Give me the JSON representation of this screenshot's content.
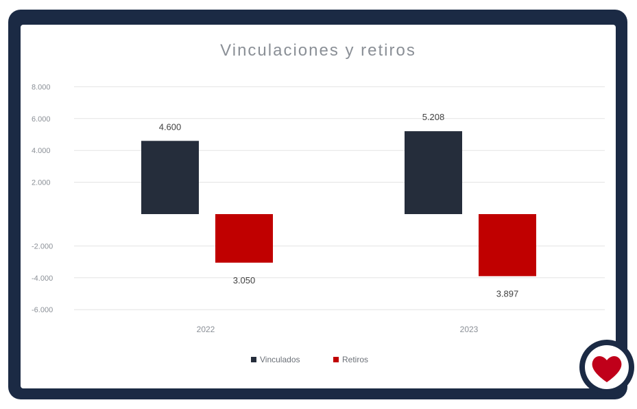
{
  "chart_data": {
    "type": "bar",
    "title": "Vinculaciones y retiros",
    "categories": [
      "2022",
      "2023"
    ],
    "series": [
      {
        "name": "Vinculados",
        "values": [
          4600,
          5208
        ],
        "labels": [
          "4.600",
          "5.208"
        ]
      },
      {
        "name": "Retiros",
        "values": [
          -3050,
          -3897
        ],
        "labels": "3.050,3.897"
      }
    ],
    "yticks": [
      {
        "value": 8000,
        "label": "8.000"
      },
      {
        "value": 6000,
        "label": "6.000"
      },
      {
        "value": 4000,
        "label": "4.000"
      },
      {
        "value": 2000,
        "label": "2.000"
      },
      {
        "value": -2000,
        "label": "-2.000"
      },
      {
        "value": -4000,
        "label": "-4.000"
      },
      {
        "value": -6000,
        "label": "-6.000"
      }
    ],
    "ylim": [
      -6000,
      8000
    ],
    "grid": true,
    "legend": "bottom",
    "colors": {
      "Vinculados": "#252d3b",
      "Retiros": "#c00000"
    }
  },
  "badge": {
    "icon": "heart-icon",
    "ring_color": "#1b2a44",
    "heart_color": "#c0001a"
  }
}
